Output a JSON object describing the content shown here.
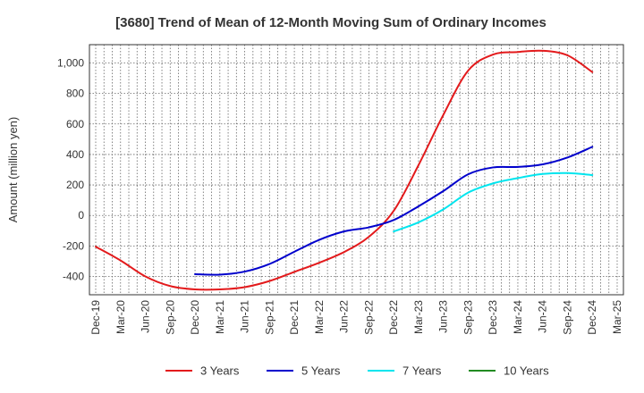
{
  "chart_data": {
    "type": "line",
    "title": "[3680]  Trend of Mean of 12-Month Moving Sum of Ordinary Incomes",
    "xlabel": "",
    "ylabel": "Amount (million yen)",
    "ylim": [
      -520,
      1120
    ],
    "yticks": [
      -400,
      -200,
      0,
      200,
      400,
      600,
      800,
      1000
    ],
    "ytick_labels": [
      "-400",
      "-200",
      "0",
      "200",
      "400",
      "600",
      "800",
      "1,000"
    ],
    "categories": [
      "Dec-19",
      "Mar-20",
      "Jun-20",
      "Sep-20",
      "Dec-20",
      "Mar-21",
      "Jun-21",
      "Sep-21",
      "Dec-21",
      "Mar-22",
      "Jun-22",
      "Sep-22",
      "Dec-22",
      "Mar-23",
      "Jun-23",
      "Sep-23",
      "Dec-23",
      "Mar-24",
      "Jun-24",
      "Sep-24",
      "Dec-24",
      "Mar-25"
    ],
    "grid": true,
    "legend_position": "bottom",
    "series": [
      {
        "name": "3 Years",
        "color": "#e31a1c",
        "values": [
          -205,
          -295,
          -400,
          -463,
          -485,
          -485,
          -470,
          -430,
          -370,
          -310,
          -240,
          -140,
          30,
          330,
          660,
          950,
          1055,
          1072,
          1080,
          1050,
          940,
          null
        ]
      },
      {
        "name": "5 Years",
        "color": "#0000cc",
        "values": [
          null,
          null,
          null,
          null,
          -385,
          -388,
          -368,
          -318,
          -238,
          -160,
          -105,
          -78,
          -30,
          60,
          160,
          270,
          315,
          318,
          335,
          380,
          450,
          null
        ]
      },
      {
        "name": "7 Years",
        "color": "#00e5ee",
        "values": [
          null,
          null,
          null,
          null,
          null,
          null,
          null,
          null,
          null,
          null,
          null,
          null,
          -105,
          -45,
          40,
          150,
          210,
          245,
          272,
          278,
          265,
          null
        ]
      },
      {
        "name": "10 Years",
        "color": "#228b22",
        "values": [
          null,
          null,
          null,
          null,
          null,
          null,
          null,
          null,
          null,
          null,
          null,
          null,
          null,
          null,
          null,
          null,
          null,
          null,
          null,
          null,
          null,
          null
        ]
      }
    ]
  }
}
